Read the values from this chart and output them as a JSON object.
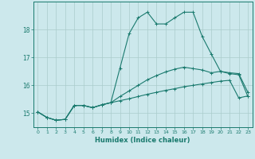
{
  "xlabel": "Humidex (Indice chaleur)",
  "background_color": "#cce8ec",
  "grid_color": "#aacccc",
  "line_color": "#1a7a6e",
  "x_ticks": [
    0,
    1,
    2,
    3,
    4,
    5,
    6,
    7,
    8,
    9,
    10,
    11,
    12,
    13,
    14,
    15,
    16,
    17,
    18,
    19,
    20,
    21,
    22,
    23
  ],
  "y_ticks": [
    15,
    16,
    17,
    18
  ],
  "ylim": [
    14.5,
    19.0
  ],
  "xlim": [
    -0.5,
    23.5
  ],
  "line1_x": [
    0,
    1,
    2,
    3,
    4,
    5,
    6,
    7,
    8,
    9,
    10,
    11,
    12,
    13,
    14,
    15,
    16,
    17,
    18,
    19,
    20,
    21,
    22,
    23
  ],
  "line1_y": [
    15.05,
    14.85,
    14.75,
    14.78,
    15.28,
    15.28,
    15.2,
    15.3,
    15.38,
    15.45,
    15.52,
    15.6,
    15.68,
    15.75,
    15.82,
    15.88,
    15.95,
    16.0,
    16.05,
    16.1,
    16.15,
    16.18,
    15.55,
    15.62
  ],
  "line2_x": [
    0,
    1,
    2,
    3,
    4,
    5,
    6,
    7,
    8,
    9,
    10,
    11,
    12,
    13,
    14,
    15,
    16,
    17,
    18,
    19,
    20,
    21,
    22,
    23
  ],
  "line2_y": [
    15.05,
    14.85,
    14.75,
    14.78,
    15.28,
    15.28,
    15.2,
    15.3,
    15.38,
    15.6,
    15.8,
    16.0,
    16.2,
    16.35,
    16.48,
    16.58,
    16.65,
    16.6,
    16.55,
    16.45,
    16.5,
    16.45,
    16.42,
    15.75
  ],
  "line3_x": [
    0,
    1,
    2,
    3,
    4,
    5,
    6,
    7,
    8,
    9,
    10,
    11,
    12,
    13,
    14,
    15,
    16,
    17,
    18,
    19,
    20,
    21,
    22,
    23
  ],
  "line3_y": [
    15.05,
    14.85,
    14.75,
    14.78,
    15.28,
    15.28,
    15.2,
    15.3,
    15.38,
    16.62,
    17.85,
    18.42,
    18.62,
    18.2,
    18.2,
    18.42,
    18.62,
    18.62,
    17.75,
    17.12,
    16.5,
    16.42,
    16.38,
    15.6
  ]
}
